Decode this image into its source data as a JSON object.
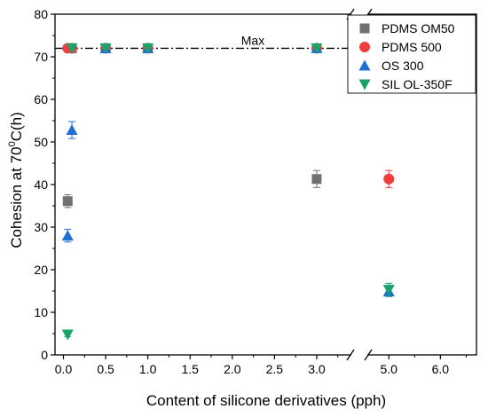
{
  "chart_data": {
    "type": "scatter",
    "xlabel": "Content of silicone derivatives (pph)",
    "ylabel_main": "Cohesion at 70",
    "ylabel_sup": "0",
    "ylabel_tail": "C(h)",
    "ylim": [
      0,
      80
    ],
    "yticks": [
      0,
      10,
      20,
      30,
      40,
      50,
      60,
      70,
      80
    ],
    "axis_break": true,
    "x_segment1": {
      "range": [
        -0.1,
        3.4
      ],
      "ticks": [
        0.0,
        0.5,
        1.0,
        1.5,
        2.0,
        2.5,
        3.0
      ],
      "tick_labels": [
        "0.0",
        "0.5",
        "1.0",
        "1.5",
        "2.0",
        "2.5",
        "3.0"
      ]
    },
    "x_segment2": {
      "range": [
        4.6,
        6.7
      ],
      "ticks": [
        5.0,
        6.0
      ],
      "tick_labels": [
        "5.0",
        "6.0"
      ]
    },
    "reference_line": {
      "y": 72,
      "label": "Max"
    },
    "legend_position": "top-right",
    "series": [
      {
        "name": "PDMS OM50",
        "marker": "square",
        "color": "#707070",
        "points": [
          {
            "x": 0.05,
            "y": 36.1,
            "err": 1.5
          },
          {
            "x": 0.1,
            "y": 72
          },
          {
            "x": 0.5,
            "y": 72
          },
          {
            "x": 1.0,
            "y": 72
          },
          {
            "x": 3.0,
            "y": 41.3,
            "err": 2.0
          }
        ]
      },
      {
        "name": "PDMS 500",
        "marker": "circle",
        "color": "#ef3e3e",
        "points": [
          {
            "x": 0.05,
            "y": 72
          },
          {
            "x": 0.1,
            "y": 72
          },
          {
            "x": 0.5,
            "y": 72
          },
          {
            "x": 1.0,
            "y": 72
          },
          {
            "x": 3.0,
            "y": 72
          },
          {
            "x": 5.0,
            "y": 41.3,
            "err": 2.0
          }
        ]
      },
      {
        "name": "OS 300",
        "marker": "triangle-up",
        "color": "#1f6fd1",
        "points": [
          {
            "x": 0.05,
            "y": 28.0,
            "err": 1.5
          },
          {
            "x": 0.1,
            "y": 52.8,
            "err": 2.0
          },
          {
            "x": 0.5,
            "y": 72
          },
          {
            "x": 1.0,
            "y": 72
          },
          {
            "x": 3.0,
            "y": 72
          },
          {
            "x": 5.0,
            "y": 14.9,
            "err": 1.2
          }
        ]
      },
      {
        "name": "SIL OL-350F",
        "marker": "triangle-down",
        "color": "#1aa36a",
        "points": [
          {
            "x": 0.05,
            "y": 4.8,
            "err": 0.5
          },
          {
            "x": 0.1,
            "y": 72
          },
          {
            "x": 0.5,
            "y": 72
          },
          {
            "x": 1.0,
            "y": 72
          },
          {
            "x": 3.0,
            "y": 72
          },
          {
            "x": 5.0,
            "y": 15.3,
            "err": 1.5
          }
        ]
      }
    ]
  }
}
